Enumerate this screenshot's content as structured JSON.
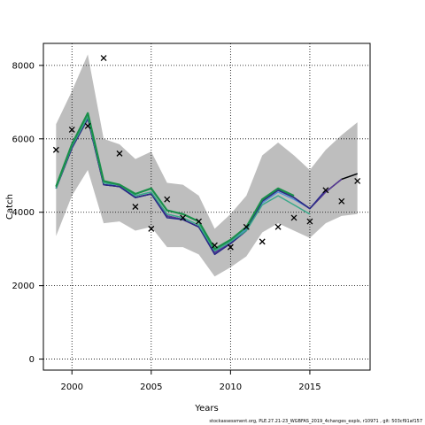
{
  "chart_data": {
    "type": "line",
    "title": "",
    "xlabel": "Years",
    "ylabel": "Catch",
    "xlim": [
      1998.2,
      2018.8
    ],
    "ylim": [
      -300,
      8600
    ],
    "xticks": [
      2000,
      2005,
      2010,
      2015
    ],
    "yticks": [
      0,
      2000,
      4000,
      6000,
      8000
    ],
    "grid": true,
    "legend": "none",
    "colors": {
      "band": "#bebebe",
      "observed": "#000000",
      "main": "#1a8f4a",
      "peel_blue": "#4a8fd8",
      "peel_teal": "#3aa88a",
      "peel_navy": "#2a2a88",
      "peel_purple": "#5a3a9a",
      "peel_black": "#000000"
    },
    "band": {
      "x": [
        1999,
        2000,
        2001,
        2002,
        2003,
        2004,
        2005,
        2006,
        2007,
        2008,
        2009,
        2010,
        2011,
        2012,
        2013,
        2014,
        2015,
        2016,
        2017,
        2018
      ],
      "upper": [
        6400,
        7300,
        8300,
        6000,
        5850,
        5450,
        5650,
        4800,
        4750,
        4450,
        3550,
        3950,
        4450,
        5550,
        5900,
        5550,
        5150,
        5700,
        6100,
        6450
      ],
      "lower": [
        3350,
        4450,
        5150,
        3700,
        3750,
        3500,
        3600,
        3050,
        3050,
        2850,
        2250,
        2500,
        2800,
        3450,
        3700,
        3500,
        3300,
        3700,
        3900,
        3950
      ]
    },
    "observed": {
      "x": [
        1999,
        2000,
        2001,
        2002,
        2003,
        2004,
        2005,
        2006,
        2007,
        2008,
        2009,
        2010,
        2011,
        2012,
        2013,
        2014,
        2015,
        2016,
        2017,
        2018
      ],
      "y": [
        5700,
        6250,
        6350,
        8200,
        5600,
        4150,
        3550,
        4350,
        3850,
        3750,
        3100,
        3050,
        3600,
        3200,
        3600,
        3850,
        3750,
        4600,
        4300,
        4850
      ]
    },
    "series": [
      {
        "x": [
          1999,
          2000,
          2001,
          2002,
          2003,
          2004,
          2005,
          2006,
          2007,
          2008,
          2009,
          2010,
          2011,
          2012,
          2013,
          2014,
          2015,
          2016,
          2017,
          2018
        ],
        "y": [
          4650,
          5800,
          6600,
          4800,
          4700,
          4450,
          4550,
          3950,
          3850,
          3650,
          2950,
          3200,
          3550,
          4250,
          4550,
          4350,
          4100,
          4550,
          4900,
          5050
        ],
        "color": "peel_blue",
        "width": 1.2
      },
      {
        "x": [
          1999,
          2000,
          2001,
          2002,
          2003,
          2004,
          2005,
          2006,
          2007,
          2008,
          2009,
          2010,
          2011,
          2012,
          2013,
          2014,
          2015,
          2016,
          2017,
          2018
        ],
        "y": [
          4650,
          5750,
          6550,
          4750,
          4700,
          4400,
          4500,
          3900,
          3800,
          3600,
          2900,
          3150,
          3500,
          4300,
          4600,
          4400,
          4100,
          4550,
          4900,
          5050
        ],
        "color": "peel_black",
        "width": 1.5
      },
      {
        "x": [
          1999,
          2000,
          2001,
          2002,
          2003,
          2004,
          2005,
          2006,
          2007,
          2008,
          2009,
          2010,
          2011,
          2012,
          2013,
          2014,
          2015,
          2016,
          2017
        ],
        "y": [
          4650,
          5750,
          6550,
          4750,
          4700,
          4400,
          4500,
          3900,
          3800,
          3600,
          2900,
          3150,
          3500,
          4300,
          4600,
          4400,
          4100,
          4550,
          4900
        ],
        "color": "peel_purple",
        "width": 1.5
      },
      {
        "x": [
          1999,
          2000,
          2001,
          2002,
          2003,
          2004,
          2005,
          2006,
          2007,
          2008,
          2009,
          2010,
          2011,
          2012,
          2013,
          2014,
          2015,
          2016
        ],
        "y": [
          4650,
          5750,
          6550,
          4750,
          4700,
          4400,
          4500,
          3850,
          3800,
          3600,
          2850,
          3150,
          3500,
          4300,
          4600,
          4400,
          4100,
          4600
        ],
        "color": "peel_navy",
        "width": 1.5
      },
      {
        "x": [
          1999,
          2000,
          2001,
          2002,
          2003,
          2004,
          2005,
          2006,
          2007,
          2008,
          2009,
          2010,
          2011,
          2012,
          2013,
          2014,
          2015
        ],
        "y": [
          4650,
          5800,
          6600,
          4800,
          4750,
          4450,
          4550,
          3950,
          3850,
          3650,
          2950,
          3200,
          3500,
          4200,
          4450,
          4200,
          3950
        ],
        "color": "peel_teal",
        "width": 1.5
      },
      {
        "x": [
          1999,
          2000,
          2001,
          2002,
          2003,
          2004,
          2005,
          2006,
          2007,
          2008,
          2009,
          2010,
          2011,
          2012,
          2013,
          2014
        ],
        "y": [
          4700,
          5850,
          6700,
          4850,
          4750,
          4500,
          4650,
          4050,
          3950,
          3750,
          3000,
          3250,
          3600,
          4350,
          4650,
          4450
        ],
        "color": "main",
        "width": 2.2
      }
    ]
  },
  "footer": {
    "text": "stockassessment.org,  PLE.27.21-23_WGBFAS_2019_4changes_expls, r10971 , git: 503cf91af157"
  }
}
